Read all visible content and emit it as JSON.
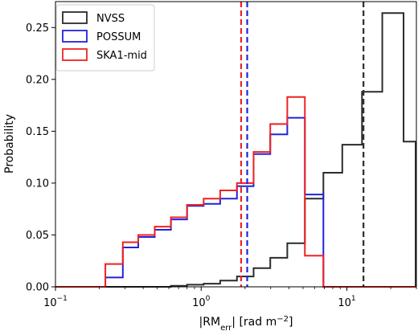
{
  "chart_data": {
    "type": "histogram-step",
    "xlabel": "|RM",
    "xlabel_sub": "err",
    "xlabel_tail": "| [rad m",
    "xlabel_sup": "−2",
    "xlabel_end": "]",
    "ylabel": "Probability",
    "xscale": "log",
    "xlim": [
      0.1,
      30
    ],
    "ylim": [
      0,
      0.275
    ],
    "grid": false,
    "legend_position": "top-left",
    "x_ticks": [
      {
        "value": 0.1,
        "base": "10",
        "exp": "−1"
      },
      {
        "value": 1,
        "base": "10",
        "exp": "0"
      },
      {
        "value": 10,
        "base": "10",
        "exp": "1"
      }
    ],
    "y_ticks": [
      {
        "value": 0.0,
        "label": "0.00"
      },
      {
        "value": 0.05,
        "label": "0.05"
      },
      {
        "value": 0.1,
        "label": "0.10"
      },
      {
        "value": 0.15,
        "label": "0.15"
      },
      {
        "value": 0.2,
        "label": "0.20"
      },
      {
        "value": 0.25,
        "label": "0.25"
      }
    ],
    "bin_edges": [
      0.1,
      0.22,
      0.29,
      0.37,
      0.48,
      0.62,
      0.8,
      1.04,
      1.35,
      1.76,
      2.29,
      2.98,
      3.9,
      5.15,
      6.9,
      9.3,
      12.7,
      17.5,
      24.5
    ],
    "series": [
      {
        "name": "NVSS",
        "color": "#2b2b2b",
        "values": [
          0,
          0,
          0,
          0,
          0,
          0.001,
          0.002,
          0.003,
          0.006,
          0.01,
          0.018,
          0.028,
          0.042,
          0.085,
          0.11,
          0.137,
          0.188,
          0.264,
          0.14
        ],
        "median": 13.0
      },
      {
        "name": "POSSUM",
        "color": "#2222dd",
        "values": [
          0,
          0.009,
          0.038,
          0.048,
          0.055,
          0.065,
          0.078,
          0.08,
          0.085,
          0.097,
          0.128,
          0.147,
          0.163,
          0.089,
          0,
          0,
          0,
          0,
          0
        ],
        "median": 2.07
      },
      {
        "name": "SKA1-mid",
        "color": "#ee2222",
        "values": [
          0,
          0.022,
          0.043,
          0.05,
          0.058,
          0.067,
          0.079,
          0.085,
          0.093,
          0.1,
          0.13,
          0.157,
          0.183,
          0.03,
          0,
          0,
          0,
          0,
          0
        ],
        "median": 1.88
      }
    ]
  }
}
